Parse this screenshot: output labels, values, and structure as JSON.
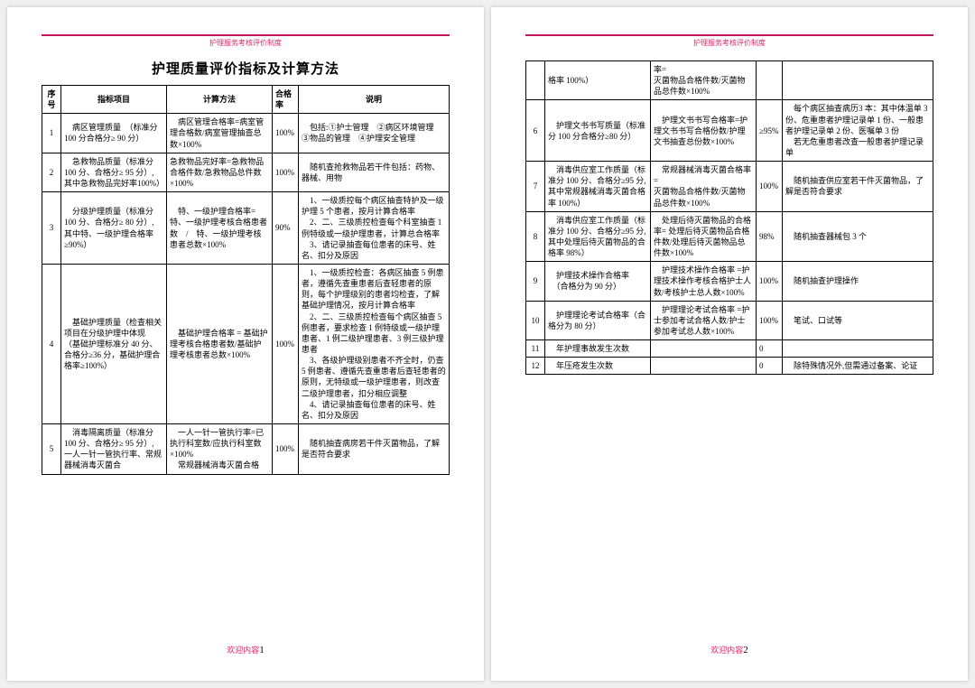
{
  "header": {
    "watermark": "护理服务考核评价制度"
  },
  "title": "护理质量评价指标及计算方法",
  "columns": {
    "seq": "序号",
    "indicator": "指标项目",
    "calc": "计算方法",
    "rate": "合格率",
    "desc": "说明"
  },
  "rows_page1": [
    {
      "seq": "1",
      "indicator": "　病区管理质量　（标准分 100 分合格分≥ 90 分）",
      "calc": "　病区管理合格率=病室管理合格数/病室管理抽查总数×100%",
      "rate": "100%",
      "desc": "　包括:①护士管理　②病区环境管理　③物品的管理　④护理安全管理"
    },
    {
      "seq": "2",
      "indicator": "　急救物品质量（标准分 100 分、合格分≥ 95 分）, 其中急救物品完好率100%）",
      "calc": "急救物品完好率=急救物品合格件数/急救物品总件数×100%",
      "rate": "100%",
      "desc": "　随机查抢救物品若干件包括：药物、器械、用物"
    },
    {
      "seq": "3",
      "indicator": "　分级护理质量（标准分 100 分、合格分≥ 80 分）, 其中特、一级护理合格率≥90%）",
      "calc": "　特、一级护理合格率=特、一级护理考核合格患者数　/　特、一级护理考核患者总数×100%",
      "rate": "90%",
      "desc": "　1、一级质控每个病区抽查特护及一级护理 5 个患者，按月计算合格率\n　2、二、三级质控检查每个科室抽查 1 例特级或一级护理患者，计算总合格率\n　3、请记录抽查每位患者的床号、姓名、扣分及原因"
    },
    {
      "seq": "4",
      "indicator": "　基础护理质量（检查相关项目在分级护理中体现 （基础护理标准分 40 分、合格分≥36 分，基础护理合格率≥100%）",
      "calc": "　基础护理合格率 = 基础护理考核合格患者数/基础护理考核患者总数×100%",
      "rate": "100%",
      "desc": "　1、一级质控检查：各病区抽查 5 例患者，遵循先查重患者后查轻患者的原则，每个护理级别的患者均检查，了解基础护理情况，按月计算合格率\n　2、二、三级质控检查每个病区抽查 5 例患者，要求检查 1 例特级或一级护理患者、1 例二级护理患者、3 例三级护理患者\n　3、各级护理级别患者不齐全时，仍查 5 例患者、遵循先查重患者后查轻患者的原则，无特级或一级护理患者，则改查二级护理患者，扣分相应调整\n　4、请记录抽查每位患者的床号、姓名、扣分及原因"
    },
    {
      "seq": "5",
      "indicator": "　消毒隔离质量（标准分 100 分、合格分≥ 95 分）, 一人一针一管执行率、常规器械消毒灭菌合",
      "calc": "　一人一针一管执行率=已执行科室数/应执行科室数×100%\n　常规器械消毒灭菌合格",
      "rate": "100%",
      "desc": "　随机抽查病房若干件灭菌物品，了解是否符合要求"
    }
  ],
  "rows_page2": [
    {
      "seq": "",
      "indicator": "格率 100%）",
      "calc": "率=\n灭菌物品合格件数/灭菌物品总件数×100%",
      "rate": "",
      "desc": ""
    },
    {
      "seq": "6",
      "indicator": "　护理文书书写质量（标准分 100 分合格分≥80 分）",
      "calc": "　护理文书书写合格率=护理文书书写合格份数/护理文书抽查总份数×100%",
      "rate": "≥95%",
      "desc": "　每个病区抽查病历3 本：其中体温单 3 份、危重患者护理记录单 1 份、一般患者护理记录单 2 份、医嘱单 3 份\n　若无危重患者改查一般患者护理记录单"
    },
    {
      "seq": "7",
      "indicator": "　消毒供应室工作质量（标准分 100 分、合格分≥95 分, 其中常规器械消毒灭菌合格率 100%）",
      "calc": "　常规器械消毒灭菌合格率=\n灭菌物品合格件数/灭菌物品总件数×100%",
      "rate": "100%",
      "desc": "　随机抽查供应室若干件灭菌物品，了解是否符合要求"
    },
    {
      "seq": "8",
      "indicator": "　消毒供应室工作质量（标准分 100 分、合格分≥95 分, 其中处理后待灭菌物品的合格率 98%）",
      "calc": "　处理后待灭菌物品的合格率= 处理后待灭菌物品合格件数/处理后待灭菌物品总件数×100%",
      "rate": "98%",
      "desc": "　随机抽查器械包 3 个"
    },
    {
      "seq": "9",
      "indicator": "　护理技术操作合格率\n　（合格分为 90 分）",
      "calc": "　护理技术操作合格率 =护理技术操作考核合格护士人数/考核护士总人数×100%",
      "rate": "100%",
      "desc": "　随机抽查护理操作"
    },
    {
      "seq": "10",
      "indicator": "　护理理论考试合格率（合格分为 80 分）",
      "calc": "　护理理论考试合格率 =护士参加考试合格人数/护士参加考试总人数×100%",
      "rate": "100%",
      "desc": "　笔试、口试等"
    },
    {
      "seq": "11",
      "indicator": "　年护理事故发生次数",
      "calc": "",
      "rate": "0",
      "desc": ""
    },
    {
      "seq": "12",
      "indicator": "　年压疮发生次数",
      "calc": "",
      "rate": "0",
      "desc": "　除特殊情况外,但需通过备案、论证"
    }
  ],
  "footer": {
    "label": "欢迎内容",
    "page1": "1",
    "page2": "2"
  }
}
